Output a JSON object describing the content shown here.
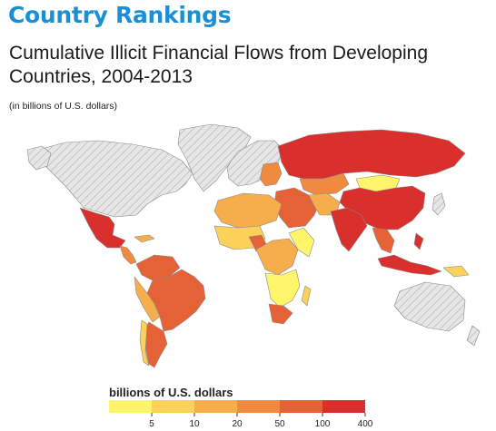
{
  "header": {
    "title": "Country Rankings",
    "subtitle": "Cumulative Illicit Financial Flows from Developing Countries, 2004-2013",
    "unit_note": "(in billions of U.S. dollars)"
  },
  "legend": {
    "title": "billions of U.S. dollars",
    "ticks": [
      "5",
      "10",
      "20",
      "50",
      "100",
      "400"
    ],
    "colors": [
      "#fff56a",
      "#fbd15a",
      "#f6ae4c",
      "#ef8a40",
      "#e56237",
      "#d9302d"
    ]
  },
  "map_colors": {
    "no_data": "#e3e3e3",
    "water": "#ffffff",
    "border": "#8a8a8a"
  }
}
